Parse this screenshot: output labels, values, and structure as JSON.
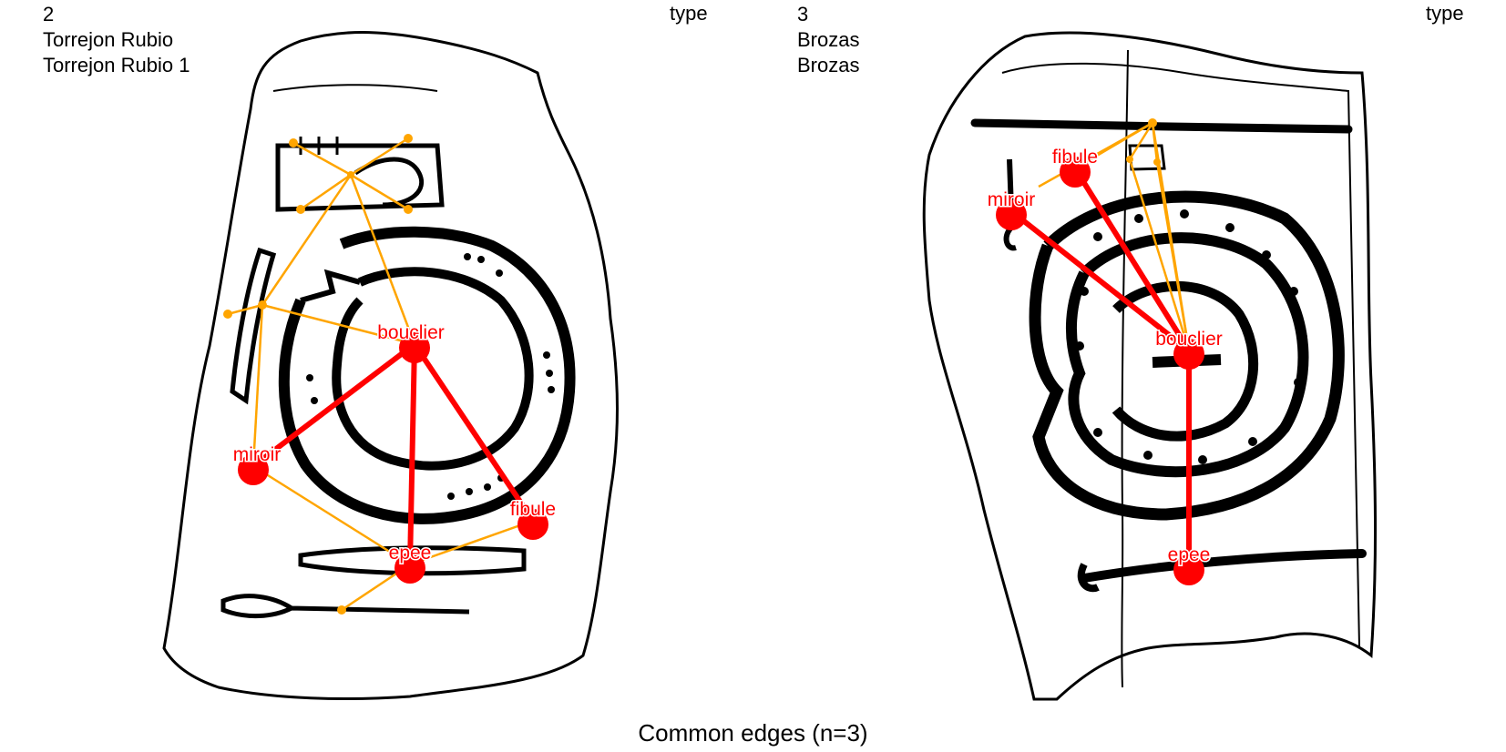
{
  "left_panel": {
    "number": "2",
    "site": "Torrejon Rubio",
    "name": "Torrejon Rubio 1",
    "type_label": "type"
  },
  "right_panel": {
    "number": "3",
    "site": "Brozas",
    "name": "Brozas",
    "type_label": "type"
  },
  "caption": "Common edges (n=3)",
  "colors": {
    "common_edge": "#ff0000",
    "other_edge": "#ffa500",
    "node": "#ff0000",
    "drawing": "#000000"
  },
  "left_graph": {
    "nodes": [
      "bouclier",
      "miroir",
      "fibule",
      "epee"
    ],
    "common_edges": [
      [
        "bouclier",
        "miroir"
      ],
      [
        "bouclier",
        "fibule"
      ],
      [
        "bouclier",
        "epee"
      ]
    ]
  },
  "right_graph": {
    "nodes": [
      "fibule",
      "miroir",
      "bouclier",
      "epee"
    ],
    "common_edges": [
      [
        "bouclier",
        "miroir"
      ],
      [
        "bouclier",
        "fibule"
      ],
      [
        "bouclier",
        "epee"
      ]
    ]
  }
}
